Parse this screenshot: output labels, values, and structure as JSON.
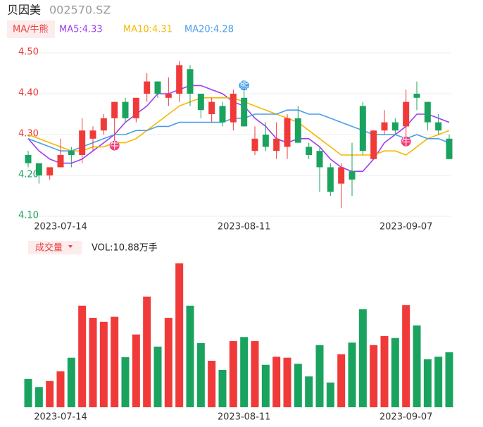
{
  "header": {
    "name": "贝因美",
    "code": "002570.SZ",
    "ma_button": "MA/牛熊",
    "vol_button": "成交量",
    "vol_label": "VOL:10.88万手"
  },
  "chart_data": [
    {
      "type": "candlestick",
      "categories": [
        null,
        null,
        null,
        "2023-07-14",
        null,
        null,
        null,
        null,
        null,
        null,
        null,
        null,
        null,
        null,
        null,
        null,
        null,
        null,
        null,
        null,
        "2023-08-11",
        null,
        null,
        null,
        null,
        null,
        null,
        null,
        null,
        null,
        null,
        null,
        null,
        null,
        null,
        "2023-09-07",
        null,
        null,
        null,
        null
      ],
      "open": [
        4.25,
        4.23,
        4.2,
        4.22,
        4.26,
        4.25,
        4.29,
        4.31,
        4.34,
        4.38,
        4.34,
        4.4,
        4.43,
        4.39,
        4.4,
        4.46,
        4.4,
        4.35,
        4.37,
        4.33,
        4.39,
        4.26,
        4.3,
        4.26,
        4.27,
        4.34,
        4.27,
        4.26,
        4.22,
        4.18,
        4.21,
        4.37,
        4.24,
        4.31,
        4.33,
        4.32,
        4.4,
        4.38,
        4.33,
        4.29
      ],
      "high": [
        4.26,
        4.23,
        4.22,
        4.29,
        4.27,
        4.34,
        4.32,
        4.35,
        4.38,
        4.39,
        4.39,
        4.45,
        4.43,
        4.44,
        4.48,
        4.47,
        4.4,
        4.39,
        4.38,
        4.41,
        4.41,
        4.32,
        4.33,
        4.33,
        4.35,
        4.37,
        4.28,
        4.27,
        4.23,
        4.23,
        4.28,
        4.38,
        4.31,
        4.36,
        4.34,
        4.41,
        4.43,
        4.38,
        4.35,
        4.3
      ],
      "low": [
        4.22,
        4.18,
        4.19,
        4.22,
        4.22,
        4.23,
        4.26,
        4.3,
        4.28,
        4.33,
        4.33,
        4.38,
        4.39,
        4.37,
        4.38,
        4.37,
        4.34,
        4.33,
        4.32,
        4.31,
        4.32,
        4.25,
        4.26,
        4.24,
        4.24,
        4.28,
        4.24,
        4.16,
        4.15,
        4.12,
        4.15,
        4.25,
        4.24,
        4.3,
        4.3,
        4.29,
        4.36,
        4.31,
        4.3,
        4.24
      ],
      "close": [
        4.23,
        4.2,
        4.22,
        4.25,
        4.25,
        4.31,
        4.31,
        4.34,
        4.38,
        4.34,
        4.39,
        4.43,
        4.4,
        4.4,
        4.47,
        4.4,
        4.36,
        4.38,
        4.33,
        4.4,
        4.32,
        4.29,
        4.27,
        4.29,
        4.34,
        4.28,
        4.25,
        4.22,
        4.16,
        4.22,
        4.19,
        4.26,
        4.31,
        4.33,
        4.31,
        4.38,
        4.39,
        4.33,
        4.31,
        4.24
      ],
      "up_color": "#f03a3a",
      "down_color": "#1aa35f",
      "series": [
        {
          "name": "MA5:4.33",
          "color": "#9d3ff0",
          "values": [
            4.29,
            4.26,
            4.24,
            4.23,
            4.23,
            4.24,
            4.26,
            4.28,
            4.3,
            4.33,
            4.35,
            4.37,
            4.4,
            4.4,
            4.41,
            4.42,
            4.42,
            4.41,
            4.4,
            4.38,
            4.37,
            4.34,
            4.32,
            4.29,
            4.28,
            4.29,
            4.29,
            4.27,
            4.24,
            4.22,
            4.21,
            4.21,
            4.24,
            4.28,
            4.3,
            4.32,
            4.35,
            4.35,
            4.34,
            4.33
          ]
        },
        {
          "name": "MA10:4.31",
          "color": "#f5b800",
          "values": [
            4.3,
            4.29,
            4.28,
            4.27,
            4.26,
            4.26,
            4.27,
            4.27,
            4.28,
            4.28,
            4.29,
            4.31,
            4.33,
            4.35,
            4.37,
            4.38,
            4.39,
            4.39,
            4.39,
            4.39,
            4.38,
            4.37,
            4.36,
            4.35,
            4.34,
            4.33,
            4.31,
            4.29,
            4.27,
            4.25,
            4.25,
            4.25,
            4.25,
            4.26,
            4.26,
            4.25,
            4.27,
            4.29,
            4.3,
            4.31
          ]
        },
        {
          "name": "MA20:4.28",
          "color": "#4a9de8",
          "values": [
            4.29,
            4.28,
            4.27,
            4.26,
            4.26,
            4.27,
            4.28,
            4.29,
            4.3,
            4.3,
            4.31,
            4.31,
            4.32,
            4.32,
            4.33,
            4.33,
            4.33,
            4.33,
            4.33,
            4.34,
            4.34,
            4.35,
            4.35,
            4.35,
            4.36,
            4.36,
            4.35,
            4.35,
            4.34,
            4.33,
            4.32,
            4.31,
            4.3,
            4.3,
            4.3,
            4.29,
            4.3,
            4.29,
            4.29,
            4.28
          ]
        }
      ],
      "signals": [
        {
          "index": 8,
          "label": "牛",
          "color": "#f03a7a"
        },
        {
          "index": 20,
          "label": "熊",
          "color": "#2b8fe8"
        },
        {
          "index": 35,
          "label": "牛",
          "color": "#f03a7a"
        }
      ],
      "ylim": [
        4.1,
        4.5
      ],
      "yticks": [
        {
          "value": 4.5,
          "label": "4.50"
        },
        {
          "value": 4.4,
          "label": "4.40"
        },
        {
          "value": 4.3,
          "label": "4.30"
        },
        {
          "value": 4.2,
          "label": "4.20"
        },
        {
          "value": 4.1,
          "label": "4.10"
        }
      ],
      "ytick_colors": [
        "#f03a3a",
        "#f03a3a",
        "#f03a3a",
        "#1aa35f",
        "#1aa35f"
      ],
      "grid": true
    },
    {
      "type": "bar",
      "values": [
        5.6,
        4.0,
        5.2,
        7.1,
        9.8,
        20.1,
        17.7,
        16.9,
        17.9,
        9.9,
        14.4,
        21.9,
        12.0,
        17.7,
        28.5,
        20.1,
        12.7,
        9.2,
        7.4,
        13.1,
        13.9,
        13.1,
        8.4,
        10.0,
        9.8,
        8.6,
        6.1,
        12.3,
        4.9,
        10.5,
        12.8,
        19.4,
        12.3,
        14.1,
        13.7,
        20.2,
        16.2,
        9.5,
        10.0,
        10.88
      ],
      "ylim": [
        0,
        29
      ]
    }
  ]
}
